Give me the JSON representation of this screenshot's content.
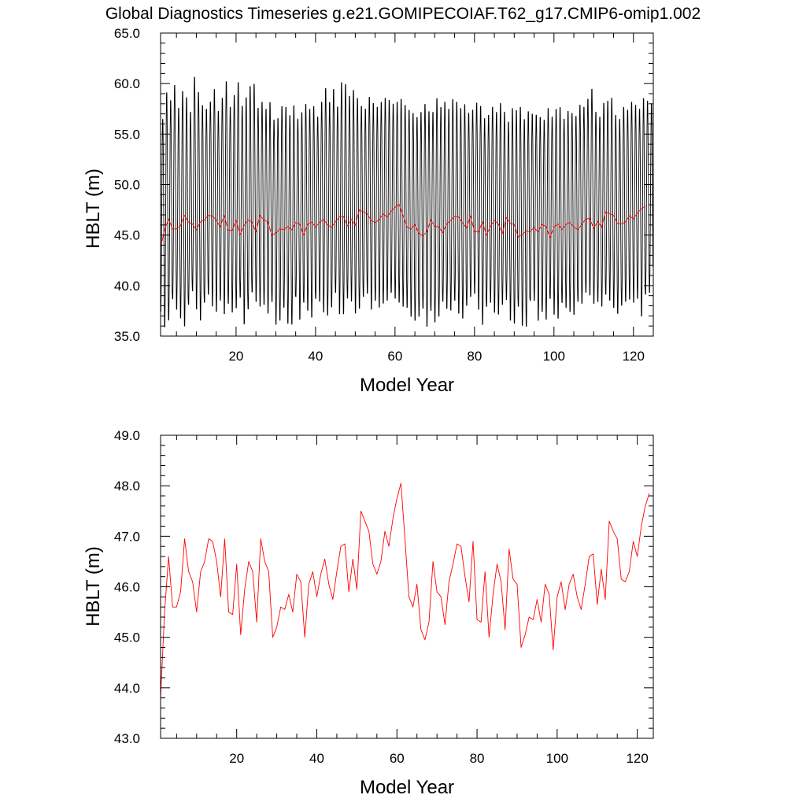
{
  "title": "Global Diagnostics Timeseries g.e21.GOMIPECOIAF.T62_g17.CMIP6-omip1.002",
  "colors": {
    "monthly": "#000000",
    "annual": "#ff0000",
    "axes": "#000000"
  },
  "chart_data": [
    {
      "type": "line",
      "xlabel": "Model Year",
      "ylabel": "HBLT (m)",
      "xlim": [
        1,
        125
      ],
      "ylim": [
        35.0,
        65.0
      ],
      "xticks": [
        20,
        40,
        60,
        80,
        100,
        120
      ],
      "yticks": [
        "35.0",
        "40.0",
        "45.0",
        "50.0",
        "55.0",
        "60.0",
        "65.0"
      ],
      "series": [
        {
          "kind": "monthly",
          "color": "#000000",
          "months_per_year": 12,
          "annual_max": [
            56.8,
            59.5,
            58.7,
            60.2,
            57.9,
            59.6,
            59.0,
            57.5,
            61.0,
            59.5,
            58.2,
            57.8,
            58.5,
            59.8,
            57.6,
            58.9,
            60.6,
            58.0,
            59.2,
            60.5,
            58.1,
            59.0,
            60.1,
            60.3,
            57.9,
            58.5,
            57.8,
            58.5,
            56.7,
            56.9,
            58.1,
            58.0,
            57.2,
            58.2,
            56.8,
            57.5,
            58.3,
            57.8,
            58.1,
            57.0,
            58.5,
            59.9,
            58.5,
            59.8,
            58.0,
            60.5,
            60.3,
            59.1,
            59.7,
            58.9,
            58.1,
            57.8,
            59.0,
            58.4,
            58.0,
            58.5,
            58.9,
            58.7,
            58.3,
            58.5,
            58.8,
            58.2,
            57.7,
            57.4,
            57.0,
            57.5,
            58.3,
            57.6,
            57.5,
            58.9,
            58.0,
            58.5,
            57.8,
            58.8,
            58.5,
            57.9,
            58.3,
            57.4,
            57.7,
            58.4,
            58.1,
            56.9,
            57.2,
            58.0,
            57.5,
            58.4,
            57.5,
            56.5,
            57.9,
            57.7,
            58.0,
            56.8,
            57.6,
            57.3,
            57.2,
            57.0,
            56.7,
            57.9,
            57.0,
            57.8,
            58.0,
            56.8,
            57.6,
            57.4,
            57.1,
            58.2,
            58.0,
            58.8,
            59.8,
            57.5,
            57.0,
            58.4,
            58.6,
            58.9,
            57.2,
            56.8,
            58.0,
            57.7,
            58.5,
            58.2,
            57.8,
            58.9,
            58.6,
            58.3
          ],
          "annual_min": [
            37.1,
            35.5,
            36.2,
            38.3,
            37.3,
            36.4,
            35.6,
            37.8,
            39.1,
            37.3,
            36.2,
            38.0,
            38.8,
            37.6,
            37.1,
            38.2,
            36.8,
            37.9,
            37.0,
            37.4,
            38.5,
            35.8,
            37.3,
            39.0,
            38.1,
            37.6,
            37.8,
            36.9,
            38.1,
            35.8,
            36.2,
            37.5,
            35.9,
            35.8,
            38.6,
            36.3,
            38.0,
            37.2,
            36.5,
            38.4,
            38.1,
            37.0,
            36.7,
            37.5,
            39.0,
            36.8,
            36.8,
            38.4,
            38.1,
            36.9,
            37.4,
            38.6,
            38.9,
            37.3,
            38.2,
            37.5,
            37.9,
            38.2,
            39.0,
            38.4,
            38.0,
            37.6,
            37.5,
            36.6,
            36.2,
            36.6,
            37.4,
            35.6,
            37.2,
            36.0,
            36.6,
            38.1,
            37.4,
            37.2,
            38.2,
            36.9,
            36.4,
            37.7,
            38.6,
            38.9,
            37.3,
            35.8,
            37.6,
            38.0,
            37.0,
            36.8,
            37.8,
            38.3,
            36.2,
            35.9,
            37.6,
            35.7,
            35.6,
            38.2,
            38.2,
            36.2,
            37.1,
            36.3,
            38.4,
            36.8,
            36.4,
            38.0,
            37.5,
            37.1,
            36.8,
            38.1,
            37.9,
            39.0,
            38.7,
            37.9,
            38.1,
            37.6,
            38.8,
            38.2,
            37.5,
            36.9,
            37.7,
            38.1,
            38.3,
            38.0,
            38.4,
            36.6,
            38.8,
            39.0
          ]
        },
        {
          "kind": "annual",
          "color": "#ff0000",
          "x_start": 1,
          "values": [
            43.8,
            45.5,
            46.6,
            45.6,
            45.6,
            45.9,
            46.95,
            46.3,
            46.1,
            45.5,
            46.3,
            46.5,
            46.95,
            46.9,
            46.5,
            45.8,
            46.95,
            45.5,
            45.45,
            46.45,
            45.05,
            45.95,
            46.5,
            46.3,
            45.3,
            46.95,
            46.5,
            46.3,
            45.0,
            45.2,
            45.6,
            45.55,
            45.85,
            45.5,
            46.25,
            46.1,
            45.0,
            46.05,
            46.3,
            45.8,
            46.25,
            46.55,
            46.05,
            45.75,
            46.3,
            46.8,
            46.85,
            45.9,
            46.55,
            45.95,
            47.5,
            47.3,
            47.1,
            46.45,
            46.25,
            46.5,
            47.1,
            46.8,
            47.35,
            47.75,
            48.05,
            46.95,
            45.8,
            45.6,
            46.05,
            45.15,
            44.95,
            45.3,
            46.5,
            45.9,
            45.8,
            45.25,
            46.1,
            46.45,
            46.85,
            46.8,
            46.2,
            45.7,
            46.9,
            45.35,
            45.3,
            46.3,
            45.0,
            45.85,
            46.45,
            46.1,
            45.15,
            46.75,
            46.15,
            46.05,
            44.8,
            45.05,
            45.4,
            45.35,
            45.75,
            45.3,
            46.05,
            45.85,
            44.75,
            45.8,
            46.1,
            45.55,
            46.05,
            46.25,
            45.8,
            45.55,
            46.05,
            46.6,
            46.65,
            45.65,
            46.35,
            45.75,
            47.3,
            47.1,
            46.95,
            46.15,
            46.1,
            46.3,
            46.9,
            46.6,
            47.2,
            47.6,
            47.85
          ]
        }
      ]
    },
    {
      "type": "line",
      "xlabel": "Model Year",
      "ylabel": "HBLT (m)",
      "xlim": [
        1,
        124
      ],
      "ylim": [
        43.0,
        49.0
      ],
      "xticks": [
        20,
        40,
        60,
        80,
        100,
        120
      ],
      "yticks": [
        "43.0",
        "44.0",
        "45.0",
        "46.0",
        "47.0",
        "48.0",
        "49.0"
      ],
      "series": [
        {
          "kind": "annual",
          "color": "#ff0000",
          "x_start": 1,
          "values": [
            43.8,
            45.5,
            46.6,
            45.6,
            45.6,
            45.9,
            46.95,
            46.3,
            46.1,
            45.5,
            46.3,
            46.5,
            46.95,
            46.9,
            46.5,
            45.8,
            46.95,
            45.5,
            45.45,
            46.45,
            45.05,
            45.95,
            46.5,
            46.3,
            45.3,
            46.95,
            46.5,
            46.3,
            45.0,
            45.2,
            45.6,
            45.55,
            45.85,
            45.5,
            46.25,
            46.1,
            45.0,
            46.05,
            46.3,
            45.8,
            46.25,
            46.55,
            46.05,
            45.75,
            46.3,
            46.8,
            46.85,
            45.9,
            46.55,
            45.95,
            47.5,
            47.3,
            47.1,
            46.45,
            46.25,
            46.5,
            47.1,
            46.8,
            47.35,
            47.75,
            48.05,
            46.95,
            45.8,
            45.6,
            46.05,
            45.15,
            44.95,
            45.3,
            46.5,
            45.9,
            45.8,
            45.25,
            46.1,
            46.45,
            46.85,
            46.8,
            46.2,
            45.7,
            46.9,
            45.35,
            45.3,
            46.3,
            45.0,
            45.85,
            46.45,
            46.1,
            45.15,
            46.75,
            46.15,
            46.05,
            44.8,
            45.05,
            45.4,
            45.35,
            45.75,
            45.3,
            46.05,
            45.85,
            44.75,
            45.8,
            46.1,
            45.55,
            46.05,
            46.25,
            45.8,
            45.55,
            46.05,
            46.6,
            46.65,
            45.65,
            46.35,
            45.75,
            47.3,
            47.1,
            46.95,
            46.15,
            46.1,
            46.3,
            46.9,
            46.6,
            47.2,
            47.6,
            47.85
          ]
        }
      ]
    }
  ]
}
